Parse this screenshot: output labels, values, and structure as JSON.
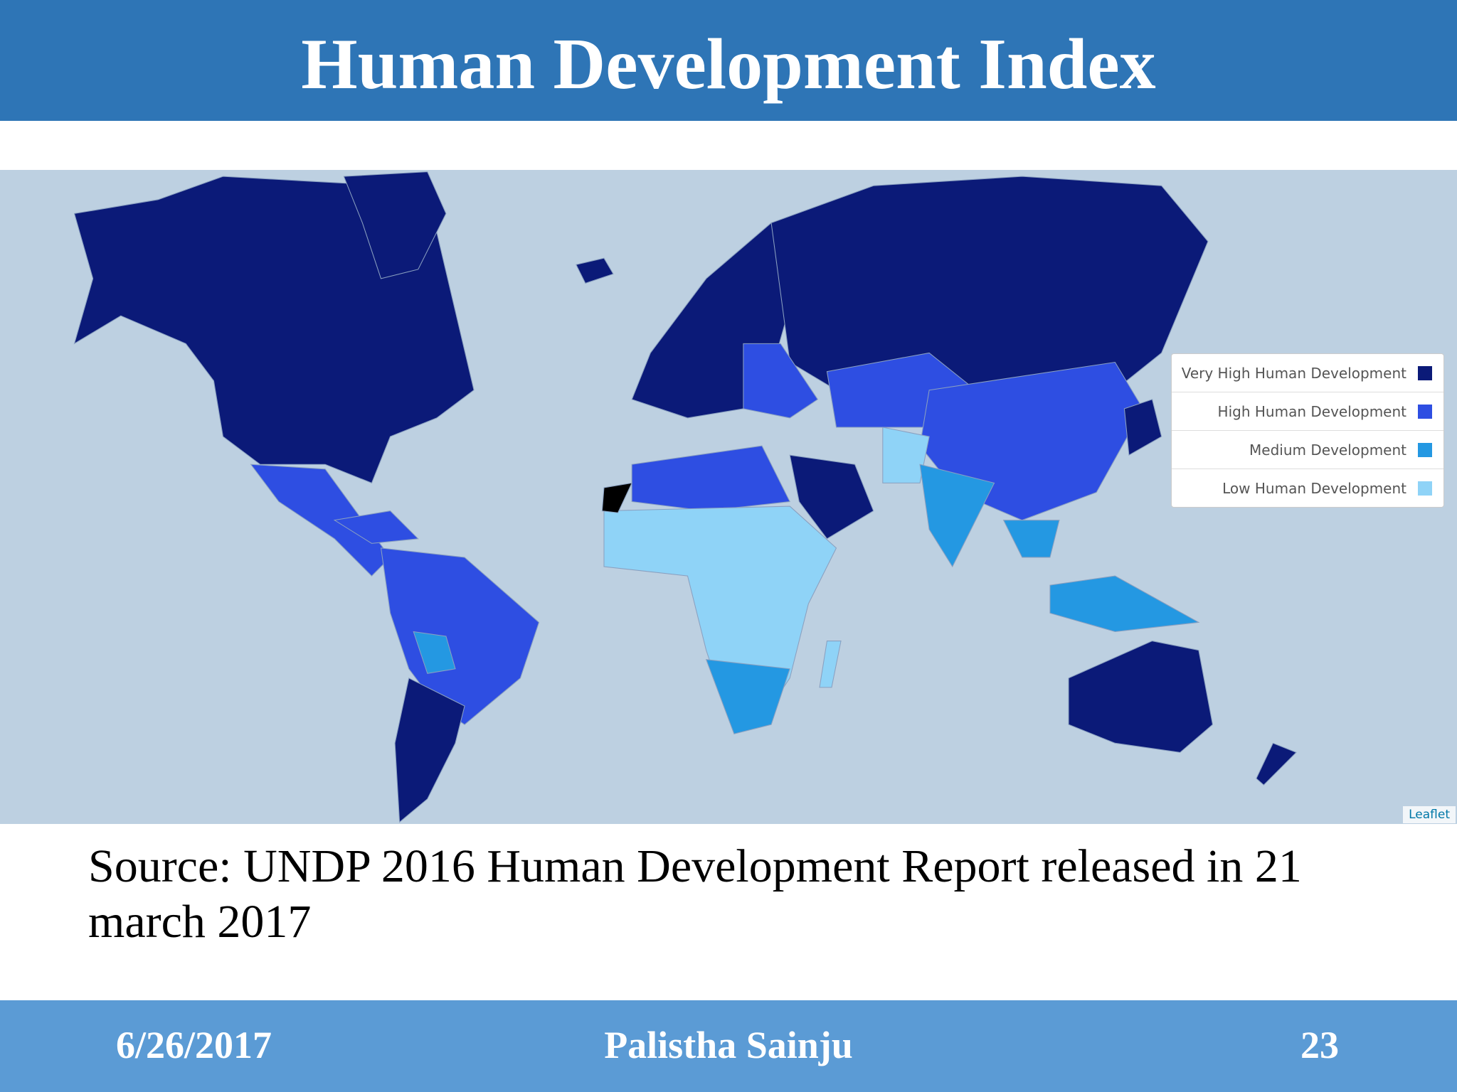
{
  "title": "Human Development Index",
  "legend": [
    {
      "label": "Very High Human Development",
      "color": "#0b1a78"
    },
    {
      "label": "High Human Development",
      "color": "#2e4ee2"
    },
    {
      "label": "Medium Development",
      "color": "#2498e2"
    },
    {
      "label": "Low Human Development",
      "color": "#8fd3f7"
    }
  ],
  "attribution": "Leaflet",
  "source": "Source: UNDP 2016 Human Development Report released in 21 march 2017",
  "footer": {
    "date": "6/26/2017",
    "author": "Palistha Sainju",
    "page": "23"
  }
}
